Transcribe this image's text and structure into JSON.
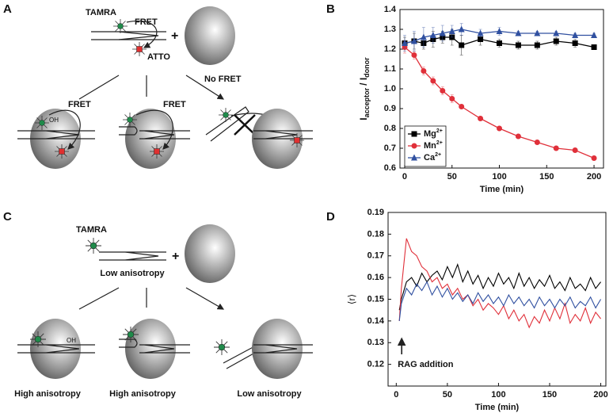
{
  "panel_labels": [
    "A",
    "B",
    "C",
    "D"
  ],
  "diagram_a": {
    "dye": "TAMRA",
    "fret": "FRET",
    "plus": "+",
    "acceptor": "ATTO",
    "outcomes": [
      {
        "label": "FRET",
        "group": "OH"
      },
      {
        "label": "FRET"
      },
      {
        "label": "No FRET"
      }
    ]
  },
  "diagram_c": {
    "dye": "TAMRA",
    "plus": "+",
    "state": "Low anisotropy",
    "group": "OH",
    "outcomes": [
      "High anisotropy",
      "High anisotropy",
      "Low anisotropy"
    ]
  },
  "chart_data": [
    {
      "type": "line",
      "xlabel": "Time (min)",
      "ylabel_parts": [
        "I",
        "acceptor",
        "/ I",
        "donor"
      ],
      "x": [
        0,
        10,
        20,
        30,
        40,
        50,
        60,
        80,
        100,
        120,
        140,
        160,
        180,
        200
      ],
      "xlim": [
        -5,
        210
      ],
      "xticks": [
        0,
        50,
        100,
        150,
        200
      ],
      "ylim": [
        0.6,
        1.4
      ],
      "yticks": [
        0.6,
        0.7,
        0.8,
        0.9,
        {
          "value": 1,
          "label": "1.0"
        },
        1.1,
        1.2,
        1.3,
        1.4
      ],
      "legend": "lower left",
      "series": [
        {
          "name": "Mg",
          "charge": "2+",
          "color": "#000000",
          "marker": "square",
          "values": [
            1.23,
            1.24,
            1.23,
            1.25,
            1.26,
            1.26,
            1.22,
            1.25,
            1.23,
            1.22,
            1.22,
            1.24,
            1.23,
            1.21
          ],
          "errors": [
            0.03,
            0.04,
            0.03,
            0.04,
            0.03,
            0.04,
            0.05,
            0.03,
            0.02,
            0.02,
            0.02,
            0.02,
            0.02,
            0.01
          ]
        },
        {
          "name": "Mn",
          "charge": "2+",
          "color": "#e0303a",
          "marker": "circle",
          "values": [
            1.21,
            1.17,
            1.09,
            1.04,
            0.99,
            0.95,
            0.91,
            0.85,
            0.8,
            0.76,
            0.73,
            0.7,
            0.69,
            0.65
          ],
          "errors": [
            0.03,
            0.02,
            0.02,
            0.02,
            0.02,
            0.02,
            0.01,
            0.01,
            0.01,
            0.01,
            0.01,
            0.01,
            0.01,
            0.01
          ]
        },
        {
          "name": "Ca",
          "charge": "2+",
          "color": "#3050a0",
          "marker": "triangle",
          "values": [
            1.23,
            1.24,
            1.26,
            1.27,
            1.28,
            1.29,
            1.3,
            1.28,
            1.29,
            1.28,
            1.28,
            1.28,
            1.27,
            1.27
          ],
          "errors": [
            0.04,
            0.05,
            0.05,
            0.04,
            0.04,
            0.03,
            0.03,
            0.02,
            0.02,
            0.01,
            0.01,
            0.01,
            0.01,
            0.01
          ]
        }
      ]
    },
    {
      "type": "line",
      "xlabel": "Time (min)",
      "ylabel": "⟨r⟩",
      "annotation": "RAG addition",
      "x": [
        3,
        5,
        10,
        15,
        20,
        25,
        30,
        35,
        40,
        45,
        50,
        55,
        60,
        65,
        70,
        75,
        80,
        85,
        90,
        95,
        100,
        105,
        110,
        115,
        120,
        125,
        130,
        135,
        140,
        145,
        150,
        155,
        160,
        165,
        170,
        175,
        180,
        185,
        190,
        195,
        200
      ],
      "xlim": [
        -8,
        205
      ],
      "xticks": [
        0,
        50,
        100,
        150,
        200
      ],
      "ylim": [
        0.11,
        0.19
      ],
      "yticks": [
        0.12,
        0.13,
        0.14,
        0.15,
        0.16,
        0.17,
        0.18,
        0.19
      ],
      "series": [
        {
          "color": "#000000",
          "values": [
            0.145,
            0.15,
            0.158,
            0.16,
            0.156,
            0.162,
            0.158,
            0.161,
            0.163,
            0.159,
            0.165,
            0.16,
            0.166,
            0.158,
            0.163,
            0.157,
            0.161,
            0.155,
            0.16,
            0.156,
            0.162,
            0.157,
            0.16,
            0.155,
            0.162,
            0.156,
            0.16,
            0.155,
            0.159,
            0.156,
            0.161,
            0.155,
            0.158,
            0.154,
            0.16,
            0.155,
            0.157,
            0.154,
            0.16,
            0.155,
            0.158
          ]
        },
        {
          "color": "#e0303a",
          "values": [
            0.14,
            0.155,
            0.178,
            0.172,
            0.17,
            0.165,
            0.163,
            0.158,
            0.16,
            0.155,
            0.157,
            0.152,
            0.155,
            0.15,
            0.152,
            0.147,
            0.15,
            0.145,
            0.148,
            0.146,
            0.143,
            0.147,
            0.141,
            0.145,
            0.14,
            0.143,
            0.137,
            0.142,
            0.139,
            0.145,
            0.14,
            0.146,
            0.141,
            0.148,
            0.139,
            0.143,
            0.14,
            0.146,
            0.139,
            0.144,
            0.141
          ]
        },
        {
          "color": "#3050a0",
          "values": [
            0.14,
            0.148,
            0.155,
            0.152,
            0.157,
            0.154,
            0.158,
            0.152,
            0.156,
            0.151,
            0.155,
            0.15,
            0.153,
            0.149,
            0.152,
            0.148,
            0.153,
            0.149,
            0.152,
            0.148,
            0.151,
            0.147,
            0.152,
            0.148,
            0.151,
            0.147,
            0.15,
            0.146,
            0.151,
            0.147,
            0.15,
            0.146,
            0.15,
            0.147,
            0.151,
            0.146,
            0.149,
            0.147,
            0.151,
            0.146,
            0.15
          ]
        }
      ]
    }
  ]
}
